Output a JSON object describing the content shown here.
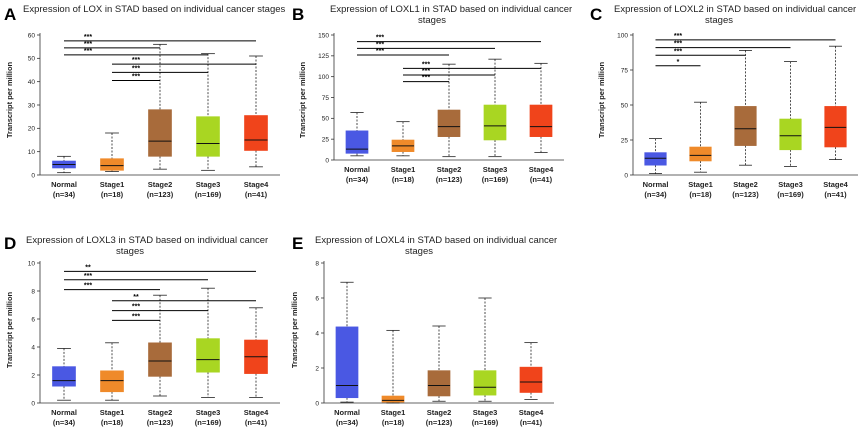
{
  "chart_data": [
    {
      "id": "A",
      "type": "boxplot",
      "title": "Expression of LOX in STAD based on individual cancer stages",
      "ylabel": "Transcript per million",
      "ylim": [
        0,
        60
      ],
      "yticks": [
        0,
        10,
        20,
        30,
        40,
        50,
        60
      ],
      "categories": [
        "Normal",
        "Stage1",
        "Stage2",
        "Stage3",
        "Stage4"
      ],
      "counts": [
        "(n=34)",
        "(n=18)",
        "(n=123)",
        "(n=169)",
        "(n=41)"
      ],
      "colors": [
        "#4a58e3",
        "#ef8a2a",
        "#a86b3b",
        "#a9d622",
        "#f0441b"
      ],
      "boxes": [
        {
          "min": 1,
          "q1": 3,
          "median": 4.5,
          "q3": 6,
          "max": 8
        },
        {
          "min": 1.5,
          "q1": 2,
          "median": 4,
          "q3": 7,
          "max": 18
        },
        {
          "min": 2.5,
          "q1": 8,
          "median": 14.5,
          "q3": 28,
          "max": 56
        },
        {
          "min": 2,
          "q1": 8,
          "median": 13.5,
          "q3": 25,
          "max": 52
        },
        {
          "min": 3.5,
          "q1": 10.5,
          "median": 15,
          "q3": 25.5,
          "max": 51
        }
      ],
      "significance": [
        {
          "from": 0,
          "to": 4,
          "label": "***",
          "y": 57.5
        },
        {
          "from": 0,
          "to": 2,
          "label": "***",
          "y": 54.5
        },
        {
          "from": 0,
          "to": 3,
          "label": "***",
          "y": 51.5
        },
        {
          "from": 1,
          "to": 4,
          "label": "***",
          "y": 47.5
        },
        {
          "from": 1,
          "to": 3,
          "label": "***",
          "y": 44
        },
        {
          "from": 1,
          "to": 2,
          "label": "***",
          "y": 40.5
        }
      ]
    },
    {
      "id": "B",
      "type": "boxplot",
      "title": "Expression of LOXL1 in STAD based on individual cancer stages",
      "ylabel": "Transcript per million",
      "ylim": [
        0,
        150
      ],
      "yticks": [
        0,
        25,
        50,
        75,
        100,
        125,
        150
      ],
      "categories": [
        "Normal",
        "Stage1",
        "Stage2",
        "Stage3",
        "Stage4"
      ],
      "counts": [
        "(n=34)",
        "(n=18)",
        "(n=123)",
        "(n=169)",
        "(n=41)"
      ],
      "colors": [
        "#4a58e3",
        "#ef8a2a",
        "#a86b3b",
        "#a9d622",
        "#f0441b"
      ],
      "boxes": [
        {
          "min": 5,
          "q1": 8,
          "median": 13,
          "q3": 35,
          "max": 57
        },
        {
          "min": 5,
          "q1": 10,
          "median": 17,
          "q3": 24,
          "max": 46
        },
        {
          "min": 4,
          "q1": 28,
          "median": 40,
          "q3": 60,
          "max": 115
        },
        {
          "min": 4,
          "q1": 24,
          "median": 41,
          "q3": 66,
          "max": 121
        },
        {
          "min": 9,
          "q1": 28,
          "median": 40,
          "q3": 66,
          "max": 116
        }
      ],
      "significance": [
        {
          "from": 0,
          "to": 4,
          "label": "***",
          "y": 142
        },
        {
          "from": 0,
          "to": 3,
          "label": "***",
          "y": 134
        },
        {
          "from": 0,
          "to": 2,
          "label": "***",
          "y": 126
        },
        {
          "from": 1,
          "to": 4,
          "label": "***",
          "y": 110
        },
        {
          "from": 1,
          "to": 3,
          "label": "***",
          "y": 102
        },
        {
          "from": 1,
          "to": 2,
          "label": "***",
          "y": 94
        }
      ]
    },
    {
      "id": "C",
      "type": "boxplot",
      "title": "Expression of LOXL2 in STAD based on individual cancer stages",
      "ylabel": "Transcript per million",
      "ylim": [
        0,
        100
      ],
      "yticks": [
        0,
        25,
        50,
        75,
        100
      ],
      "categories": [
        "Normal",
        "Stage1",
        "Stage2",
        "Stage3",
        "Stage4"
      ],
      "counts": [
        "(n=34)",
        "(n=18)",
        "(n=123)",
        "(n=169)",
        "(n=41)"
      ],
      "colors": [
        "#4a58e3",
        "#ef8a2a",
        "#a86b3b",
        "#a9d622",
        "#f0441b"
      ],
      "boxes": [
        {
          "min": 1,
          "q1": 7,
          "median": 12,
          "q3": 16,
          "max": 26
        },
        {
          "min": 2,
          "q1": 10,
          "median": 14,
          "q3": 20,
          "max": 52
        },
        {
          "min": 7,
          "q1": 21,
          "median": 33,
          "q3": 49,
          "max": 89
        },
        {
          "min": 6,
          "q1": 18,
          "median": 28,
          "q3": 40,
          "max": 81
        },
        {
          "min": 11,
          "q1": 20,
          "median": 34,
          "q3": 49,
          "max": 92
        }
      ],
      "significance": [
        {
          "from": 0,
          "to": 4,
          "label": "***",
          "y": 96.5
        },
        {
          "from": 0,
          "to": 3,
          "label": "***",
          "y": 91
        },
        {
          "from": 0,
          "to": 2,
          "label": "***",
          "y": 85.5
        },
        {
          "from": 0,
          "to": 1,
          "label": "*",
          "y": 78
        }
      ]
    },
    {
      "id": "D",
      "type": "boxplot",
      "title": "Expression of LOXL3 in STAD based on individual cancer stages",
      "ylabel": "Transcript per million",
      "ylim": [
        0,
        10
      ],
      "yticks": [
        0,
        2,
        4,
        6,
        8,
        10
      ],
      "categories": [
        "Normal",
        "Stage1",
        "Stage2",
        "Stage3",
        "Stage4"
      ],
      "counts": [
        "(n=34)",
        "(n=18)",
        "(n=123)",
        "(n=169)",
        "(n=41)"
      ],
      "colors": [
        "#4a58e3",
        "#ef8a2a",
        "#a86b3b",
        "#a9d622",
        "#f0441b"
      ],
      "boxes": [
        {
          "min": 0.2,
          "q1": 1.2,
          "median": 1.6,
          "q3": 2.6,
          "max": 3.9
        },
        {
          "min": 0.2,
          "q1": 0.8,
          "median": 1.6,
          "q3": 2.3,
          "max": 4.3
        },
        {
          "min": 0.5,
          "q1": 1.9,
          "median": 3.0,
          "q3": 4.3,
          "max": 7.7
        },
        {
          "min": 0.4,
          "q1": 2.2,
          "median": 3.1,
          "q3": 4.6,
          "max": 8.2
        },
        {
          "min": 0.4,
          "q1": 2.1,
          "median": 3.3,
          "q3": 4.5,
          "max": 6.8
        }
      ],
      "significance": [
        {
          "from": 0,
          "to": 4,
          "label": "**",
          "y": 9.4
        },
        {
          "from": 0,
          "to": 3,
          "label": "***",
          "y": 8.8
        },
        {
          "from": 0,
          "to": 2,
          "label": "***",
          "y": 8.1
        },
        {
          "from": 1,
          "to": 4,
          "label": "**",
          "y": 7.3
        },
        {
          "from": 1,
          "to": 3,
          "label": "***",
          "y": 6.6
        },
        {
          "from": 1,
          "to": 2,
          "label": "***",
          "y": 5.9
        }
      ]
    },
    {
      "id": "E",
      "type": "boxplot",
      "title": "Expression of LOXL4 in STAD based on individual cancer stages",
      "ylabel": "Transcript per million",
      "ylim": [
        0,
        8
      ],
      "yticks": [
        0,
        2,
        4,
        6,
        8
      ],
      "categories": [
        "Normal",
        "Stage1",
        "Stage2",
        "Stage3",
        "Stage4"
      ],
      "counts": [
        "(n=34)",
        "(n=18)",
        "(n=123)",
        "(n=169)",
        "(n=41)"
      ],
      "colors": [
        "#4a58e3",
        "#ef8a2a",
        "#a86b3b",
        "#a9d622",
        "#f0441b"
      ],
      "boxes": [
        {
          "min": 0.05,
          "q1": 0.3,
          "median": 1.0,
          "q3": 4.35,
          "max": 6.9
        },
        {
          "min": 0.0,
          "q1": 0.05,
          "median": 0.15,
          "q3": 0.4,
          "max": 4.15
        },
        {
          "min": 0.1,
          "q1": 0.4,
          "median": 1.0,
          "q3": 1.85,
          "max": 4.4
        },
        {
          "min": 0.1,
          "q1": 0.45,
          "median": 0.9,
          "q3": 1.85,
          "max": 6.0
        },
        {
          "min": 0.2,
          "q1": 0.6,
          "median": 1.2,
          "q3": 2.05,
          "max": 3.45
        }
      ],
      "significance": []
    }
  ]
}
